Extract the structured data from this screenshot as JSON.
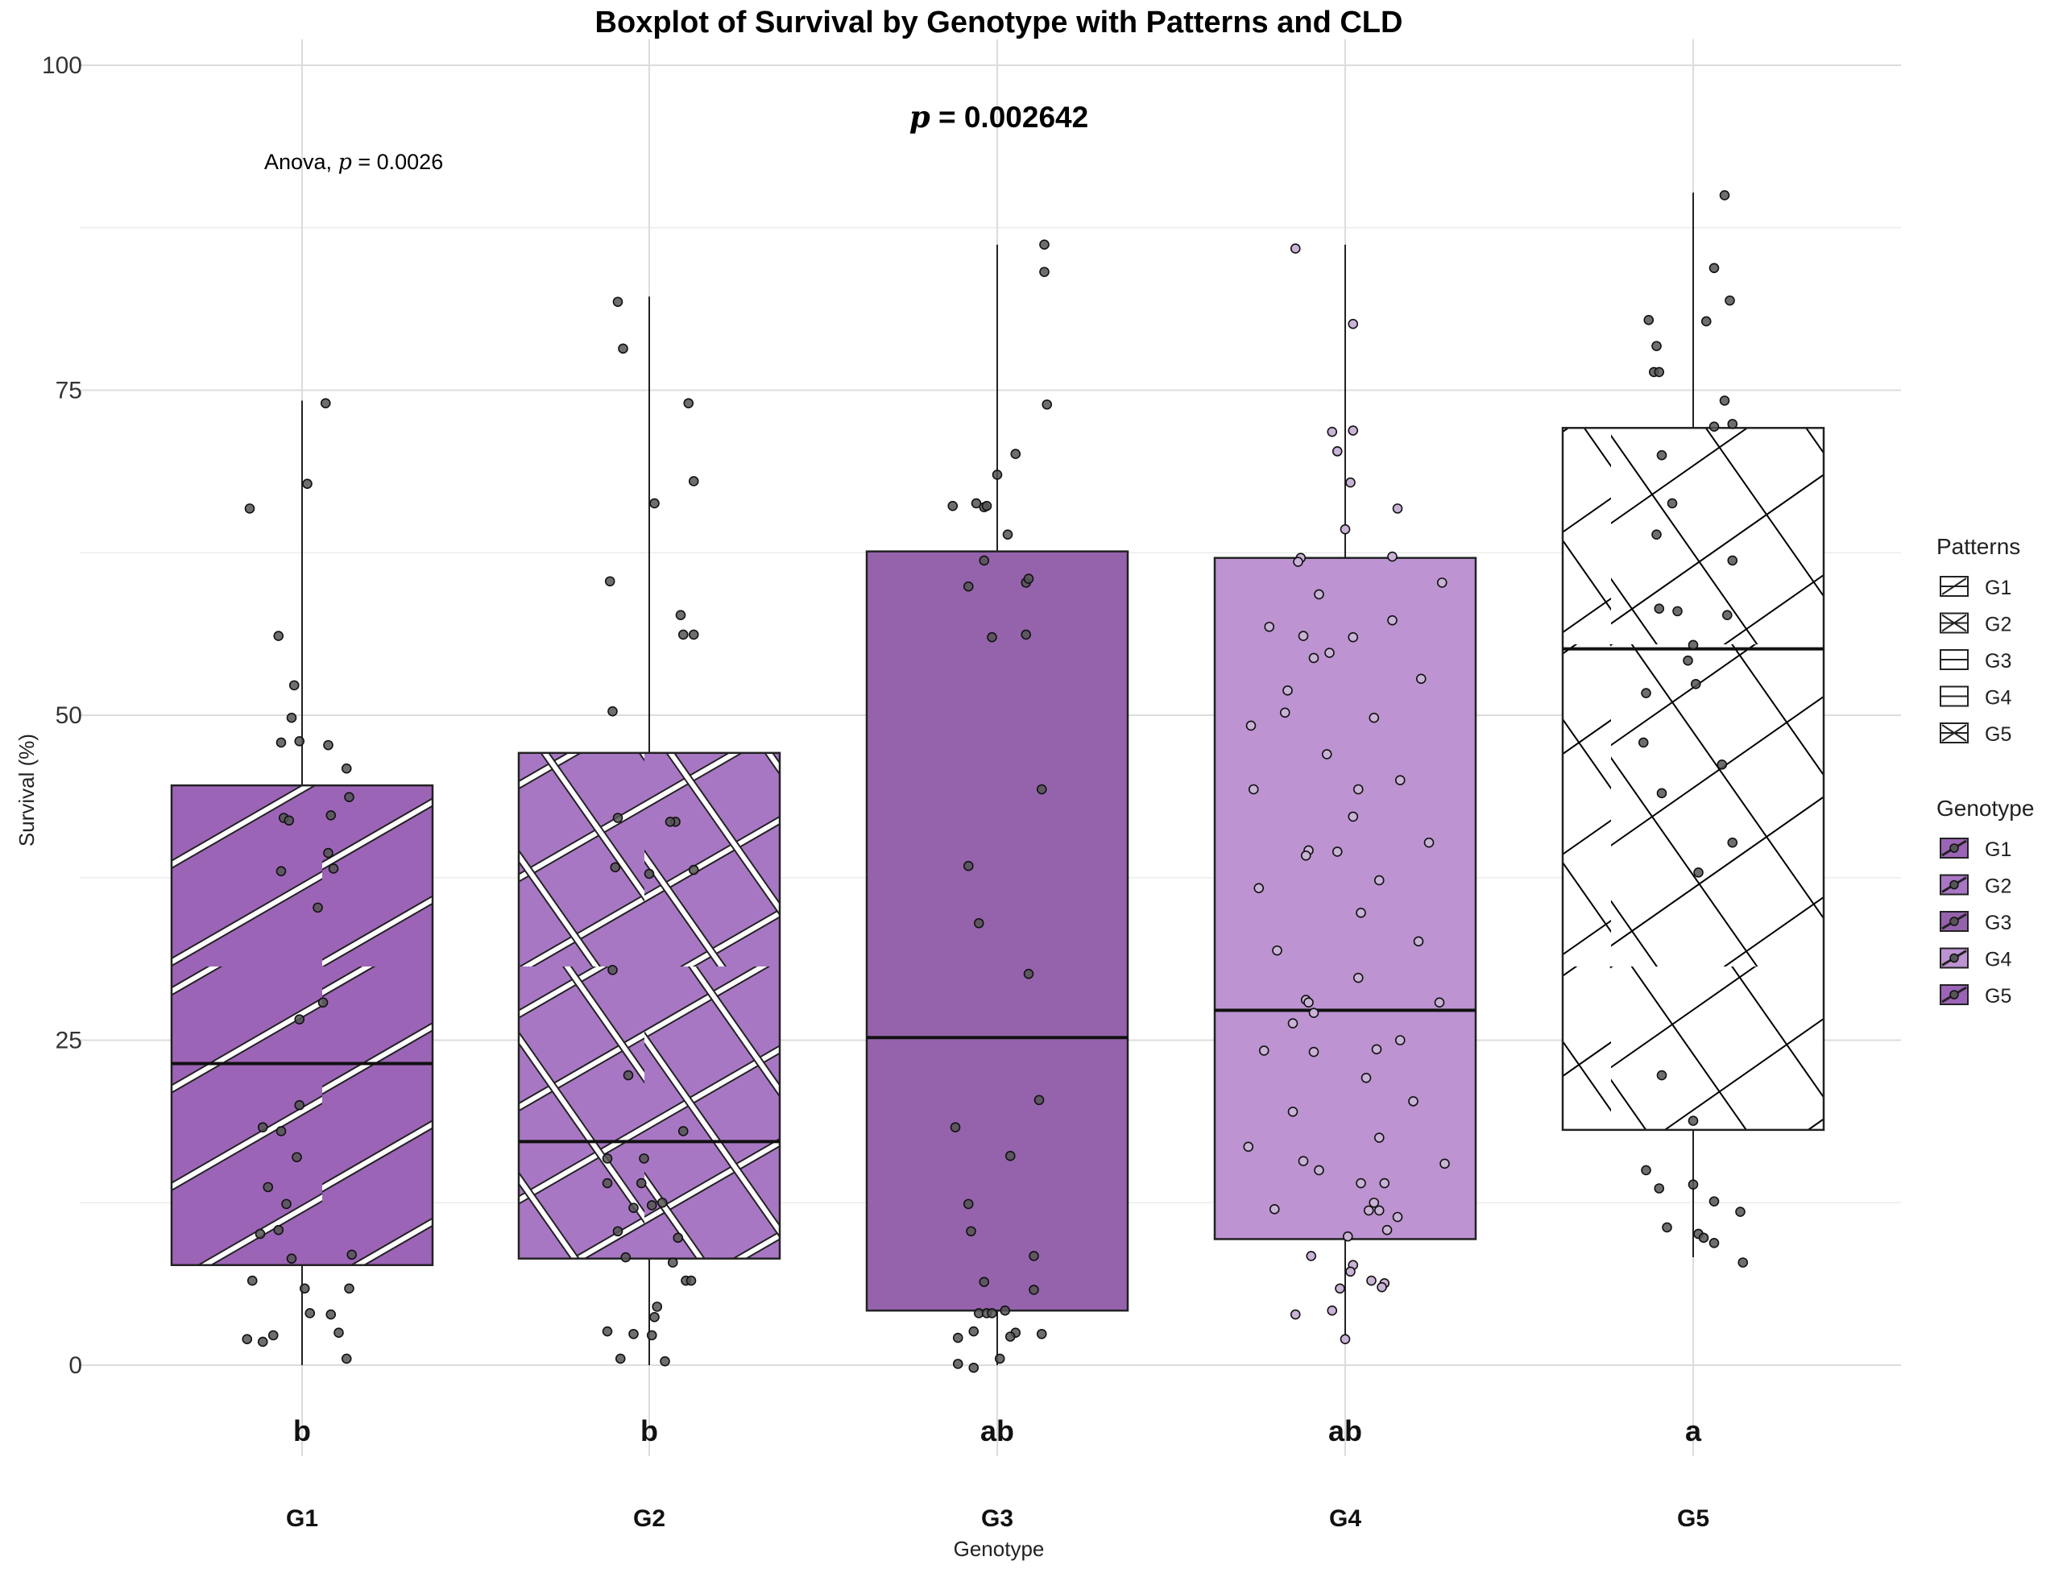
{
  "chart_data": {
    "type": "boxplot",
    "title": "Boxplot of Survival by Genotype with Patterns and CLD",
    "xlabel": "Genotype",
    "ylabel": "Survival (%)",
    "ylim": [
      -7,
      102
    ],
    "yticks": [
      0,
      25,
      50,
      75,
      100
    ],
    "grid": true,
    "annotations": {
      "anova_prefix": "Anova, ",
      "anova_p_symbol": "p",
      "anova_p_value": " = 0.0026",
      "main_p_symbol": "p",
      "main_p_value": " = 0.002642"
    },
    "categories": [
      "G1",
      "G2",
      "G3",
      "G4",
      "G5"
    ],
    "boxes": [
      {
        "name": "G1",
        "q1": 7.7,
        "median": 23.2,
        "q3": 44.6,
        "whisker_low": 0,
        "whisker_high": 74.2,
        "cld": "b",
        "fill": "#9c64b7",
        "pattern": "stripe",
        "pattern_color": "#ffffff"
      },
      {
        "name": "G2",
        "q1": 8.2,
        "median": 17.2,
        "q3": 47.1,
        "whisker_low": 0,
        "whisker_high": 82.2,
        "cld": "b",
        "fill": "#a877c4",
        "pattern": "crosshatch",
        "pattern_color": "#ffffff"
      },
      {
        "name": "G3",
        "q1": 4.2,
        "median": 25.2,
        "q3": 62.6,
        "whisker_low": 0,
        "whisker_high": 86.2,
        "cld": "ab",
        "fill": "#9563ac",
        "pattern": "none",
        "pattern_color": "#ffffff"
      },
      {
        "name": "G4",
        "q1": 9.7,
        "median": 27.3,
        "q3": 62.1,
        "whisker_low": 2,
        "whisker_high": 86.2,
        "cld": "ab",
        "fill": "#bd93d1",
        "pattern": "none",
        "pattern_color": "#ffffff"
      },
      {
        "name": "G5",
        "q1": 18.1,
        "median": 55.1,
        "q3": 72.1,
        "whisker_low": 8.3,
        "whisker_high": 90.2,
        "cld": "a",
        "fill": "#ffffff",
        "pattern": "crosshatch",
        "pattern_color": "#000000"
      }
    ],
    "points": [
      [
        {
          "dx": -0.2,
          "y": 65.9
        },
        {
          "dx": 0.09,
          "y": 74.0
        },
        {
          "dx": 0.02,
          "y": 67.8
        },
        {
          "dx": -0.09,
          "y": 56.1
        },
        {
          "dx": -0.03,
          "y": 52.3
        },
        {
          "dx": -0.04,
          "y": 49.8
        },
        {
          "dx": -0.08,
          "y": 47.9
        },
        {
          "dx": -0.01,
          "y": 48.0
        },
        {
          "dx": 0.1,
          "y": 47.7
        },
        {
          "dx": 0.17,
          "y": 45.9
        },
        {
          "dx": 0.18,
          "y": 43.7
        },
        {
          "dx": 0.11,
          "y": 42.3
        },
        {
          "dx": -0.07,
          "y": 42.1
        },
        {
          "dx": -0.05,
          "y": 41.9
        },
        {
          "dx": 0.1,
          "y": 39.4
        },
        {
          "dx": 0.12,
          "y": 38.2
        },
        {
          "dx": -0.08,
          "y": 38.0
        },
        {
          "dx": 0.06,
          "y": 35.2
        },
        {
          "dx": 0.08,
          "y": 27.9
        },
        {
          "dx": -0.01,
          "y": 26.6
        },
        {
          "dx": -0.01,
          "y": 20.0
        },
        {
          "dx": -0.15,
          "y": 18.3
        },
        {
          "dx": -0.08,
          "y": 18.0
        },
        {
          "dx": -0.02,
          "y": 16.0
        },
        {
          "dx": -0.13,
          "y": 13.7
        },
        {
          "dx": -0.06,
          "y": 12.4
        },
        {
          "dx": -0.09,
          "y": 10.4
        },
        {
          "dx": -0.16,
          "y": 10.1
        },
        {
          "dx": 0.19,
          "y": 8.5
        },
        {
          "dx": -0.04,
          "y": 8.2
        },
        {
          "dx": 0.01,
          "y": 5.9
        },
        {
          "dx": 0.18,
          "y": 5.9
        },
        {
          "dx": -0.19,
          "y": 6.5
        },
        {
          "dx": 0.03,
          "y": 4.0
        },
        {
          "dx": 0.11,
          "y": 3.9
        },
        {
          "dx": 0.14,
          "y": 2.5
        },
        {
          "dx": -0.11,
          "y": 2.3
        },
        {
          "dx": -0.21,
          "y": 2.0
        },
        {
          "dx": -0.15,
          "y": 1.8
        },
        {
          "dx": 0.17,
          "y": 0.5
        }
      ],
      [
        {
          "dx": -0.12,
          "y": 81.8
        },
        {
          "dx": -0.1,
          "y": 78.2
        },
        {
          "dx": 0.15,
          "y": 74.0
        },
        {
          "dx": 0.17,
          "y": 68.0
        },
        {
          "dx": 0.02,
          "y": 66.3
        },
        {
          "dx": -0.15,
          "y": 60.3
        },
        {
          "dx": 0.12,
          "y": 57.7
        },
        {
          "dx": 0.13,
          "y": 56.2
        },
        {
          "dx": 0.17,
          "y": 56.2
        },
        {
          "dx": -0.14,
          "y": 50.3
        },
        {
          "dx": -0.12,
          "y": 42.1
        },
        {
          "dx": 0.1,
          "y": 41.8
        },
        {
          "dx": 0.08,
          "y": 41.8
        },
        {
          "dx": 0.17,
          "y": 38.1
        },
        {
          "dx": -0.13,
          "y": 38.3
        },
        {
          "dx": 0.0,
          "y": 37.8
        },
        {
          "dx": -0.14,
          "y": 30.4
        },
        {
          "dx": -0.08,
          "y": 22.3
        },
        {
          "dx": 0.13,
          "y": 18.0
        },
        {
          "dx": -0.16,
          "y": 15.9
        },
        {
          "dx": -0.02,
          "y": 15.9
        },
        {
          "dx": -0.16,
          "y": 14.0
        },
        {
          "dx": -0.03,
          "y": 14.0
        },
        {
          "dx": 0.05,
          "y": 12.5
        },
        {
          "dx": -0.06,
          "y": 12.1
        },
        {
          "dx": 0.01,
          "y": 12.3
        },
        {
          "dx": -0.12,
          "y": 10.3
        },
        {
          "dx": 0.11,
          "y": 9.8
        },
        {
          "dx": -0.09,
          "y": 8.3
        },
        {
          "dx": 0.09,
          "y": 7.9
        },
        {
          "dx": 0.14,
          "y": 6.5
        },
        {
          "dx": 0.16,
          "y": 6.5
        },
        {
          "dx": 0.03,
          "y": 4.5
        },
        {
          "dx": 0.02,
          "y": 3.7
        },
        {
          "dx": -0.16,
          "y": 2.6
        },
        {
          "dx": -0.06,
          "y": 2.4
        },
        {
          "dx": 0.01,
          "y": 2.3
        },
        {
          "dx": -0.11,
          "y": 0.5
        },
        {
          "dx": 0.06,
          "y": 0.3
        }
      ],
      [
        {
          "dx": 0.18,
          "y": 86.2
        },
        {
          "dx": 0.18,
          "y": 84.1
        },
        {
          "dx": 0.19,
          "y": 73.9
        },
        {
          "dx": 0.07,
          "y": 70.1
        },
        {
          "dx": 0.0,
          "y": 68.5
        },
        {
          "dx": -0.17,
          "y": 66.1
        },
        {
          "dx": -0.08,
          "y": 66.3
        },
        {
          "dx": -0.05,
          "y": 66.0
        },
        {
          "dx": -0.04,
          "y": 66.1
        },
        {
          "dx": 0.04,
          "y": 63.9
        },
        {
          "dx": -0.05,
          "y": 61.9
        },
        {
          "dx": -0.11,
          "y": 59.9
        },
        {
          "dx": 0.11,
          "y": 60.2
        },
        {
          "dx": 0.12,
          "y": 60.5
        },
        {
          "dx": -0.02,
          "y": 56.0
        },
        {
          "dx": 0.11,
          "y": 56.2
        },
        {
          "dx": 0.17,
          "y": 44.3
        },
        {
          "dx": -0.11,
          "y": 38.4
        },
        {
          "dx": -0.07,
          "y": 34.0
        },
        {
          "dx": 0.12,
          "y": 30.1
        },
        {
          "dx": 0.16,
          "y": 20.4
        },
        {
          "dx": -0.16,
          "y": 18.3
        },
        {
          "dx": 0.05,
          "y": 16.1
        },
        {
          "dx": -0.11,
          "y": 12.4
        },
        {
          "dx": -0.1,
          "y": 10.3
        },
        {
          "dx": 0.14,
          "y": 8.4
        },
        {
          "dx": -0.05,
          "y": 6.4
        },
        {
          "dx": 0.14,
          "y": 5.8
        },
        {
          "dx": -0.07,
          "y": 4.0
        },
        {
          "dx": -0.04,
          "y": 4.0
        },
        {
          "dx": -0.02,
          "y": 4.0
        },
        {
          "dx": 0.03,
          "y": 4.2
        },
        {
          "dx": -0.09,
          "y": 2.6
        },
        {
          "dx": 0.07,
          "y": 2.5
        },
        {
          "dx": 0.05,
          "y": 2.2
        },
        {
          "dx": -0.15,
          "y": 2.1
        },
        {
          "dx": 0.17,
          "y": 2.4
        },
        {
          "dx": 0.01,
          "y": 0.5
        },
        {
          "dx": -0.15,
          "y": 0.1
        },
        {
          "dx": -0.09,
          "y": -0.2
        }
      ],
      [
        {
          "dx": -0.19,
          "y": 85.9
        },
        {
          "dx": 0.03,
          "y": 80.1
        },
        {
          "dx": -0.05,
          "y": 71.8
        },
        {
          "dx": 0.03,
          "y": 71.9
        },
        {
          "dx": -0.03,
          "y": 70.3
        },
        {
          "dx": 0.02,
          "y": 67.9
        },
        {
          "dx": 0.2,
          "y": 65.9
        },
        {
          "dx": 0.0,
          "y": 64.3
        },
        {
          "dx": -0.17,
          "y": 62.1
        },
        {
          "dx": -0.18,
          "y": 61.8
        },
        {
          "dx": 0.18,
          "y": 62.2
        },
        {
          "dx": 0.37,
          "y": 60.2
        },
        {
          "dx": -0.1,
          "y": 59.3
        },
        {
          "dx": 0.18,
          "y": 57.3
        },
        {
          "dx": -0.29,
          "y": 56.8
        },
        {
          "dx": -0.16,
          "y": 56.1
        },
        {
          "dx": 0.03,
          "y": 56.0
        },
        {
          "dx": -0.06,
          "y": 54.8
        },
        {
          "dx": -0.12,
          "y": 54.4
        },
        {
          "dx": -0.22,
          "y": 51.9
        },
        {
          "dx": 0.29,
          "y": 52.8
        },
        {
          "dx": -0.23,
          "y": 50.2
        },
        {
          "dx": 0.11,
          "y": 49.8
        },
        {
          "dx": -0.36,
          "y": 49.2
        },
        {
          "dx": -0.07,
          "y": 47.0
        },
        {
          "dx": 0.21,
          "y": 45.0
        },
        {
          "dx": 0.05,
          "y": 44.3
        },
        {
          "dx": -0.35,
          "y": 44.3
        },
        {
          "dx": 0.03,
          "y": 42.2
        },
        {
          "dx": 0.32,
          "y": 40.2
        },
        {
          "dx": -0.14,
          "y": 39.6
        },
        {
          "dx": -0.03,
          "y": 39.5
        },
        {
          "dx": -0.15,
          "y": 39.2
        },
        {
          "dx": 0.13,
          "y": 37.3
        },
        {
          "dx": -0.33,
          "y": 36.7
        },
        {
          "dx": 0.06,
          "y": 34.8
        },
        {
          "dx": 0.28,
          "y": 32.6
        },
        {
          "dx": -0.26,
          "y": 31.9
        },
        {
          "dx": 0.05,
          "y": 29.8
        },
        {
          "dx": 0.36,
          "y": 27.9
        },
        {
          "dx": -0.15,
          "y": 28.1
        },
        {
          "dx": -0.14,
          "y": 27.9
        },
        {
          "dx": -0.12,
          "y": 27.1
        },
        {
          "dx": -0.2,
          "y": 26.3
        },
        {
          "dx": 0.21,
          "y": 25.0
        },
        {
          "dx": 0.12,
          "y": 24.3
        },
        {
          "dx": -0.31,
          "y": 24.2
        },
        {
          "dx": -0.12,
          "y": 24.1
        },
        {
          "dx": 0.08,
          "y": 22.1
        },
        {
          "dx": 0.26,
          "y": 20.3
        },
        {
          "dx": -0.2,
          "y": 19.5
        },
        {
          "dx": -0.37,
          "y": 16.8
        },
        {
          "dx": 0.13,
          "y": 17.5
        },
        {
          "dx": -0.16,
          "y": 15.7
        },
        {
          "dx": 0.38,
          "y": 15.5
        },
        {
          "dx": -0.1,
          "y": 15.0
        },
        {
          "dx": 0.06,
          "y": 14.0
        },
        {
          "dx": 0.15,
          "y": 14.0
        },
        {
          "dx": 0.11,
          "y": 12.5
        },
        {
          "dx": -0.27,
          "y": 12.0
        },
        {
          "dx": 0.09,
          "y": 11.9
        },
        {
          "dx": 0.13,
          "y": 11.9
        },
        {
          "dx": 0.2,
          "y": 11.4
        },
        {
          "dx": 0.16,
          "y": 10.4
        },
        {
          "dx": 0.01,
          "y": 9.9
        },
        {
          "dx": -0.13,
          "y": 8.4
        },
        {
          "dx": 0.03,
          "y": 7.7
        },
        {
          "dx": 0.02,
          "y": 7.2
        },
        {
          "dx": 0.1,
          "y": 6.5
        },
        {
          "dx": 0.15,
          "y": 6.3
        },
        {
          "dx": 0.14,
          "y": 6.0
        },
        {
          "dx": -0.02,
          "y": 5.9
        },
        {
          "dx": -0.05,
          "y": 4.2
        },
        {
          "dx": -0.19,
          "y": 3.9
        },
        {
          "dx": 0.0,
          "y": 2.0
        }
      ],
      [
        {
          "dx": 0.12,
          "y": 90.0
        },
        {
          "dx": 0.08,
          "y": 84.4
        },
        {
          "dx": 0.14,
          "y": 81.9
        },
        {
          "dx": 0.05,
          "y": 80.3
        },
        {
          "dx": -0.17,
          "y": 80.4
        },
        {
          "dx": -0.14,
          "y": 78.4
        },
        {
          "dx": -0.15,
          "y": 76.4
        },
        {
          "dx": -0.13,
          "y": 76.4
        },
        {
          "dx": 0.12,
          "y": 74.2
        },
        {
          "dx": 0.15,
          "y": 72.4
        },
        {
          "dx": 0.08,
          "y": 72.2
        },
        {
          "dx": -0.12,
          "y": 70.0
        },
        {
          "dx": -0.08,
          "y": 66.3
        },
        {
          "dx": -0.14,
          "y": 63.9
        },
        {
          "dx": 0.15,
          "y": 61.9
        },
        {
          "dx": -0.13,
          "y": 58.2
        },
        {
          "dx": -0.06,
          "y": 58.0
        },
        {
          "dx": 0.13,
          "y": 57.7
        },
        {
          "dx": 0.0,
          "y": 55.4
        },
        {
          "dx": -0.02,
          "y": 54.2
        },
        {
          "dx": 0.01,
          "y": 52.4
        },
        {
          "dx": -0.18,
          "y": 51.7
        },
        {
          "dx": -0.19,
          "y": 47.9
        },
        {
          "dx": 0.11,
          "y": 46.2
        },
        {
          "dx": -0.12,
          "y": 44.0
        },
        {
          "dx": 0.15,
          "y": 40.2
        },
        {
          "dx": 0.02,
          "y": 37.9
        },
        {
          "dx": -0.12,
          "y": 22.3
        },
        {
          "dx": 0.0,
          "y": 18.8
        },
        {
          "dx": -0.18,
          "y": 15.0
        },
        {
          "dx": -0.13,
          "y": 13.6
        },
        {
          "dx": 0.0,
          "y": 13.9
        },
        {
          "dx": 0.08,
          "y": 12.6
        },
        {
          "dx": 0.18,
          "y": 11.8
        },
        {
          "dx": -0.1,
          "y": 10.6
        },
        {
          "dx": 0.02,
          "y": 10.1
        },
        {
          "dx": 0.04,
          "y": 9.8
        },
        {
          "dx": 0.08,
          "y": 9.4
        },
        {
          "dx": 0.19,
          "y": 7.9
        }
      ]
    ],
    "legends": {
      "patterns": {
        "title": "Patterns",
        "items": [
          "G1",
          "G2",
          "G3",
          "G4",
          "G5"
        ]
      },
      "genotype": {
        "title": "Genotype",
        "items": [
          "G1",
          "G2",
          "G3",
          "G4",
          "G5"
        ]
      }
    }
  }
}
